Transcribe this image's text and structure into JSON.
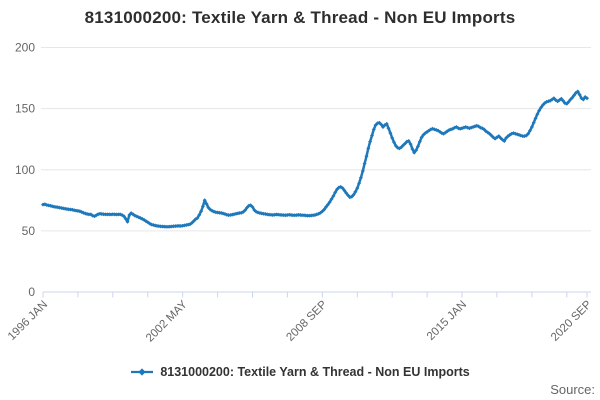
{
  "header": {
    "title": "8131000200: Textile Yarn & Thread - Non EU Imports"
  },
  "legend": {
    "label": "8131000200: Textile Yarn & Thread - Non EU Imports"
  },
  "footer": {
    "source_label": "Source:"
  },
  "colors": {
    "line": "#1e78ba",
    "grid": "#e6e6e6",
    "axis": "#ccd6eb",
    "tick_label": "#666666",
    "title": "#2e2e2e",
    "legend_text": "#333333",
    "source_text": "#666666"
  },
  "chart_data": {
    "type": "line",
    "title": "8131000200: Textile Yarn & Thread - Non EU Imports",
    "xlabel": "",
    "ylabel": "",
    "ylim": [
      0,
      200
    ],
    "yticks": [
      0,
      50,
      100,
      150,
      200
    ],
    "grid": "horizontal-only",
    "legend_position": "bottom-center",
    "x_range": {
      "start": "1996 JAN",
      "end": "2020 SEP",
      "frequency": "monthly"
    },
    "xtick_labels": [
      "1996 JAN",
      "2002 MAY",
      "2008 SEP",
      "2015 JAN",
      "2020 SEP"
    ],
    "xtick_month_indices": [
      0,
      76,
      152,
      228,
      296
    ],
    "minor_tick_month_indices": [
      0,
      19,
      38,
      57,
      76,
      95,
      114,
      133,
      152,
      171,
      190,
      209,
      228,
      247,
      266,
      285,
      296
    ],
    "series": [
      {
        "name": "8131000200: Textile Yarn & Thread - Non EU Imports",
        "values": [
          71.5,
          71.8,
          71.2,
          70.8,
          70.5,
          70.2,
          69.8,
          69.5,
          69.3,
          69.0,
          68.7,
          68.4,
          68.1,
          67.9,
          67.6,
          67.5,
          67.2,
          66.9,
          66.6,
          66.3,
          66.0,
          65.4,
          64.8,
          64.2,
          63.8,
          63.5,
          63.5,
          62.5,
          62.0,
          62.8,
          63.6,
          64.0,
          63.8,
          63.6,
          63.5,
          63.5,
          63.5,
          63.4,
          63.6,
          63.5,
          63.4,
          63.5,
          63.5,
          63.0,
          62.0,
          60.0,
          57.5,
          63.0,
          64.5,
          63.5,
          62.5,
          61.8,
          61.2,
          60.5,
          59.8,
          59.0,
          58.0,
          57.0,
          56.0,
          55.2,
          54.8,
          54.4,
          54.1,
          53.9,
          53.7,
          53.6,
          53.5,
          53.4,
          53.4,
          53.5,
          53.6,
          53.8,
          53.9,
          54.0,
          54.1,
          54.0,
          54.2,
          54.5,
          54.8,
          55.1,
          55.5,
          56.5,
          58.0,
          59.5,
          60.5,
          63.0,
          66.0,
          70.0,
          75.0,
          72.0,
          69.0,
          67.5,
          66.5,
          65.8,
          65.3,
          65.0,
          64.8,
          64.6,
          64.2,
          63.8,
          63.2,
          62.9,
          63.0,
          63.3,
          63.6,
          64.0,
          64.3,
          64.6,
          64.8,
          65.5,
          67.0,
          69.0,
          70.5,
          71.0,
          69.5,
          67.0,
          65.7,
          65.0,
          64.6,
          64.3,
          64.0,
          63.8,
          63.5,
          63.3,
          63.2,
          63.0,
          63.2,
          63.4,
          63.3,
          63.1,
          63.0,
          62.9,
          62.8,
          63.0,
          63.2,
          63.0,
          62.8,
          62.7,
          62.9,
          63.1,
          63.0,
          62.8,
          62.7,
          62.6,
          62.5,
          62.5,
          62.6,
          62.8,
          63.0,
          63.5,
          64.0,
          64.8,
          66.0,
          67.5,
          69.5,
          71.5,
          73.5,
          76.0,
          78.5,
          81.5,
          84.0,
          85.5,
          86.0,
          85.0,
          83.0,
          81.0,
          79.0,
          77.5,
          78.0,
          79.5,
          82.0,
          85.0,
          89.0,
          93.5,
          99.0,
          105.0,
          111.0,
          117.5,
          123.0,
          128.0,
          133.0,
          136.5,
          138.0,
          138.5,
          137.0,
          135.0,
          136.5,
          137.5,
          134.0,
          130.0,
          126.0,
          122.5,
          119.5,
          118.0,
          117.5,
          118.5,
          120.0,
          121.5,
          123.0,
          123.5,
          121.0,
          117.0,
          114.0,
          116.0,
          119.0,
          123.0,
          126.5,
          128.5,
          130.0,
          131.0,
          132.0,
          133.0,
          133.5,
          133.0,
          132.5,
          132.0,
          131.0,
          130.0,
          129.5,
          130.5,
          131.5,
          132.5,
          133.0,
          133.5,
          134.5,
          135.0,
          134.0,
          133.5,
          134.0,
          134.5,
          135.0,
          134.5,
          134.0,
          134.5,
          135.0,
          135.5,
          136.0,
          135.5,
          134.5,
          134.0,
          133.0,
          131.5,
          130.5,
          129.5,
          128.0,
          126.5,
          125.5,
          126.5,
          127.5,
          126.0,
          124.5,
          123.5,
          126.0,
          127.5,
          128.5,
          129.5,
          130.0,
          129.5,
          129.0,
          128.5,
          128.0,
          127.5,
          127.5,
          128.0,
          129.5,
          132.0,
          135.0,
          138.5,
          142.0,
          145.5,
          148.5,
          151.0,
          153.0,
          154.5,
          155.5,
          156.0,
          156.5,
          157.5,
          158.5,
          157.0,
          156.0,
          157.0,
          158.0,
          156.5,
          154.5,
          154.0,
          155.5,
          157.5,
          159.0,
          161.0,
          163.0,
          164.0,
          161.5,
          158.5,
          157.5,
          159.5,
          158.5
        ]
      }
    ]
  }
}
